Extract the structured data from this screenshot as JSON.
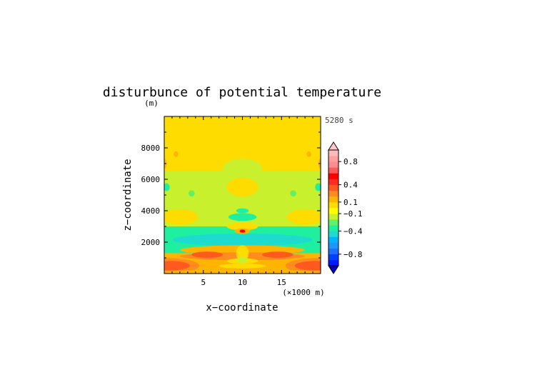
{
  "chart_data": {
    "type": "heatmap",
    "title": "disturbunce of potential temperature",
    "time_label": "5280 s",
    "xlabel": "x−coordinate",
    "x_units": "(×1000 m)",
    "ylabel": "z−coordinate",
    "y_units": "(m)",
    "xlim": [
      0,
      20
    ],
    "ylim": [
      0,
      10000
    ],
    "x_ticks": [
      5,
      10,
      15
    ],
    "x_tick_labels": [
      "5",
      "10",
      "15"
    ],
    "y_ticks": [
      2000,
      4000,
      6000,
      8000
    ],
    "y_tick_labels": [
      "2000",
      "4000",
      "6000",
      "8000"
    ],
    "colorbar": {
      "levels": [
        -1.0,
        -0.9,
        -0.8,
        -0.7,
        -0.6,
        -0.5,
        -0.4,
        -0.3,
        -0.2,
        -0.1,
        0.0,
        0.1,
        0.2,
        0.3,
        0.4,
        0.5,
        0.6,
        0.7,
        0.8,
        0.9,
        1.0
      ],
      "colors": [
        "#0019ff",
        "#0040ff",
        "#1e6eff",
        "#1e96ff",
        "#00b4ff",
        "#1edccd",
        "#1ef0a0",
        "#64f064",
        "#c8f02d",
        "#ffff00",
        "#ffdc00",
        "#ffb400",
        "#ff8c1e",
        "#ff5a1e",
        "#ff2d1e",
        "#ff0000",
        "#ff5a5a",
        "#ff8c8c",
        "#ffa0a0",
        "#ffb9b9"
      ],
      "extend": "both",
      "under_color": "#0000c8",
      "over_color": "#ffc8c8",
      "tick_values": [
        0.8,
        0.4,
        0.1,
        -0.1,
        -0.4,
        -0.8
      ],
      "tick_labels": [
        "0.8",
        "0.4",
        "0.1",
        "−0.1",
        "−0.4",
        "−0.8"
      ]
    },
    "field_regions": [
      {
        "shape": "rect",
        "x0": 0,
        "x1": 20,
        "z0": 0,
        "z1": 10000,
        "value": 0.05
      },
      {
        "shape": "rect",
        "x0": 0,
        "x1": 20,
        "z0": 0,
        "z1": 6500,
        "value": -0.15
      },
      {
        "shape": "ellipse",
        "cx": 10,
        "cz": 6700,
        "rx": 2.5,
        "rz": 600,
        "value": -0.15
      },
      {
        "shape": "ellipse",
        "cx": 10,
        "cz": 5500,
        "rx": 2.0,
        "rz": 600,
        "value": 0.05
      },
      {
        "shape": "ellipse",
        "cx": 2.0,
        "cz": 3600,
        "rx": 2.3,
        "rz": 500,
        "value": 0.05
      },
      {
        "shape": "ellipse",
        "cx": 18.0,
        "cz": 3600,
        "rx": 2.3,
        "rz": 500,
        "value": 0.05
      },
      {
        "shape": "ellipse",
        "cx": 0.3,
        "cz": 5500,
        "rx": 0.4,
        "rz": 250,
        "value": -0.35
      },
      {
        "shape": "ellipse",
        "cx": 19.7,
        "cz": 5500,
        "rx": 0.4,
        "rz": 250,
        "value": -0.35
      },
      {
        "shape": "ellipse",
        "cx": 3.5,
        "cz": 5100,
        "rx": 0.4,
        "rz": 200,
        "value": -0.25
      },
      {
        "shape": "ellipse",
        "cx": 16.5,
        "cz": 5100,
        "rx": 0.4,
        "rz": 200,
        "value": -0.25
      },
      {
        "shape": "ellipse",
        "cx": 1.5,
        "cz": 7600,
        "rx": 0.3,
        "rz": 180,
        "value": 0.15
      },
      {
        "shape": "ellipse",
        "cx": 18.5,
        "cz": 7600,
        "rx": 0.3,
        "rz": 180,
        "value": 0.15
      },
      {
        "shape": "ellipse",
        "cx": 0.1,
        "cz": 7000,
        "rx": 0.2,
        "rz": 300,
        "value": 0.15
      },
      {
        "shape": "ellipse",
        "cx": 19.9,
        "cz": 7000,
        "rx": 0.2,
        "rz": 300,
        "value": 0.15
      },
      {
        "shape": "ellipse",
        "cx": 10,
        "cz": 4000,
        "rx": 0.8,
        "rz": 150,
        "value": -0.35
      },
      {
        "shape": "ellipse",
        "cx": 10,
        "cz": 3600,
        "rx": 1.8,
        "rz": 250,
        "value": -0.35
      },
      {
        "shape": "rect",
        "x0": 0,
        "x1": 20,
        "z0": 1150,
        "z1": 3000,
        "value": -0.35
      },
      {
        "shape": "ellipse",
        "cx": 10,
        "cz": 2150,
        "rx": 9.0,
        "rz": 400,
        "value": -0.45
      },
      {
        "shape": "ellipse",
        "cx": 10,
        "cz": 3000,
        "rx": 2.0,
        "rz": 250,
        "value": 0.05
      },
      {
        "shape": "ellipse",
        "cx": 10,
        "cz": 2700,
        "rx": 1.0,
        "rz": 180,
        "value": 0.15
      },
      {
        "shape": "ellipse",
        "cx": 10,
        "cz": 2700,
        "rx": 0.35,
        "rz": 100,
        "value": 0.55
      },
      {
        "shape": "rect",
        "x0": 0,
        "x1": 20,
        "z0": 0,
        "z1": 1300,
        "value": 0.15
      },
      {
        "shape": "ellipse",
        "cx": 10,
        "cz": 1500,
        "rx": 8.0,
        "rz": 300,
        "value": 0.15
      },
      {
        "shape": "ellipse",
        "cx": 10,
        "cz": 1100,
        "rx": 8.0,
        "rz": 250,
        "value": 0.25
      },
      {
        "shape": "ellipse",
        "cx": 5.5,
        "cz": 1200,
        "rx": 2.0,
        "rz": 200,
        "value": 0.35
      },
      {
        "shape": "ellipse",
        "cx": 14.5,
        "cz": 1200,
        "rx": 2.0,
        "rz": 200,
        "value": 0.35
      },
      {
        "shape": "ellipse",
        "cx": 0,
        "cz": 500,
        "rx": 4.5,
        "rz": 500,
        "value": 0.25
      },
      {
        "shape": "ellipse",
        "cx": 20,
        "cz": 500,
        "rx": 4.5,
        "rz": 500,
        "value": 0.25
      },
      {
        "shape": "ellipse",
        "cx": 0.8,
        "cz": 500,
        "rx": 2.5,
        "rz": 300,
        "value": 0.35
      },
      {
        "shape": "ellipse",
        "cx": 19.2,
        "cz": 500,
        "rx": 2.5,
        "rz": 300,
        "value": 0.35
      },
      {
        "shape": "ellipse",
        "cx": 10,
        "cz": 1300,
        "rx": 0.8,
        "rz": 500,
        "value": 0.05
      },
      {
        "shape": "ellipse",
        "cx": 10,
        "cz": 800,
        "rx": 2.0,
        "rz": 180,
        "value": 0.05
      },
      {
        "shape": "ellipse",
        "cx": 10,
        "cz": 850,
        "rx": 0.7,
        "rz": 200,
        "value": -0.15
      },
      {
        "shape": "ellipse",
        "cx": 10,
        "cz": 480,
        "rx": 3.0,
        "rz": 150,
        "value": 0.05
      },
      {
        "shape": "ellipse",
        "cx": 10,
        "cz": 100,
        "rx": 10.0,
        "rz": 150,
        "value": 0.15
      }
    ]
  }
}
